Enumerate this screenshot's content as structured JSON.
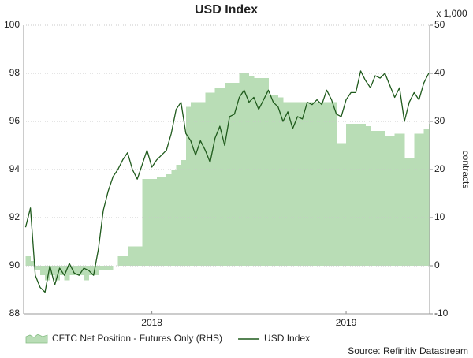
{
  "chart_data": {
    "type": "line",
    "title": "USD Index",
    "y2_scale_note": "x 1,000",
    "y2label": "contracts",
    "source": "Source: Refinitiv Datastream",
    "x": [
      2017.35,
      2017.375,
      2017.4,
      2017.425,
      2017.45,
      2017.475,
      2017.5,
      2017.525,
      2017.55,
      2017.575,
      2017.6,
      2017.625,
      2017.65,
      2017.675,
      2017.7,
      2017.725,
      2017.75,
      2017.775,
      2017.8,
      2017.825,
      2017.85,
      2017.875,
      2017.9,
      2017.925,
      2017.95,
      2017.975,
      2018,
      2018.025,
      2018.05,
      2018.075,
      2018.1,
      2018.125,
      2018.15,
      2018.175,
      2018.2,
      2018.225,
      2018.25,
      2018.275,
      2018.3,
      2018.325,
      2018.35,
      2018.375,
      2018.4,
      2018.425,
      2018.45,
      2018.475,
      2018.5,
      2018.525,
      2018.55,
      2018.575,
      2018.6,
      2018.625,
      2018.65,
      2018.675,
      2018.7,
      2018.725,
      2018.75,
      2018.775,
      2018.8,
      2018.825,
      2018.85,
      2018.875,
      2018.9,
      2018.925,
      2018.95,
      2018.975,
      2019,
      2019.025,
      2019.05,
      2019.075,
      2019.1,
      2019.125,
      2019.15,
      2019.175,
      2019.2,
      2019.225,
      2019.25,
      2019.275,
      2019.3,
      2019.325,
      2019.35,
      2019.375,
      2019.4,
      2019.425
    ],
    "series": [
      {
        "name": "CFTC Net Position - Futures Only (RHS)",
        "type": "area",
        "axis": "y2",
        "color": "#b9ddb6",
        "edge_color": "#86bd84",
        "values": [
          2,
          1,
          -1,
          -2,
          -3,
          -2,
          -3,
          -2,
          -3,
          -2,
          -2,
          -2,
          -3,
          -2,
          -2,
          -1,
          -1,
          -1,
          0,
          2,
          2,
          4,
          4,
          4,
          18,
          18,
          18,
          18.5,
          18.5,
          19,
          20,
          21,
          22,
          33,
          34,
          34,
          34,
          36,
          36,
          37,
          37,
          38,
          38,
          38,
          40,
          40,
          39.5,
          39,
          39,
          39,
          35.5,
          35.5,
          35,
          34,
          34,
          34,
          34,
          34,
          34,
          34,
          34,
          34,
          34,
          34,
          25.5,
          25.5,
          29.5,
          29.5,
          29.5,
          29.5,
          29,
          28,
          28,
          28,
          27,
          27,
          27.5,
          27.5,
          22.5,
          22.5,
          27.5,
          27.5,
          28.5,
          29.5
        ]
      },
      {
        "name": "USD Index",
        "type": "line",
        "color": "#1f5a1c",
        "values": [
          91.6,
          92.4,
          89.6,
          89.1,
          88.9,
          90.0,
          89.2,
          89.9,
          89.6,
          90.1,
          89.7,
          89.6,
          89.9,
          89.8,
          89.6,
          90.7,
          92.3,
          93.1,
          93.7,
          94.0,
          94.4,
          94.7,
          94.0,
          93.6,
          94.2,
          94.8,
          94.1,
          94.4,
          94.6,
          94.8,
          95.5,
          96.5,
          96.8,
          95.5,
          95.2,
          94.6,
          95.2,
          94.8,
          94.3,
          95.3,
          95.8,
          95.0,
          96.2,
          96.3,
          97.0,
          97.3,
          96.8,
          97.0,
          96.5,
          96.9,
          97.3,
          96.8,
          96.6,
          96.0,
          96.4,
          95.7,
          96.2,
          96.1,
          96.8,
          96.7,
          96.9,
          96.7,
          97.3,
          96.9,
          96.3,
          96.2,
          96.9,
          97.2,
          97.2,
          98.1,
          97.7,
          97.4,
          97.9,
          97.8,
          98.0,
          97.5,
          97.0,
          97.4,
          96.0,
          96.8,
          97.2,
          96.9,
          97.6,
          98.0
        ]
      }
    ],
    "xlim": [
      2017.34,
      2019.43
    ],
    "xticks": [
      2018,
      2019
    ],
    "ylim": [
      88,
      100
    ],
    "yticks": [
      88,
      90,
      92,
      94,
      96,
      98,
      100
    ],
    "y2lim": [
      -10,
      50
    ],
    "y2ticks": [
      -10,
      0,
      10,
      20,
      30,
      40,
      50
    ],
    "grid": true,
    "legend": "bottom"
  }
}
